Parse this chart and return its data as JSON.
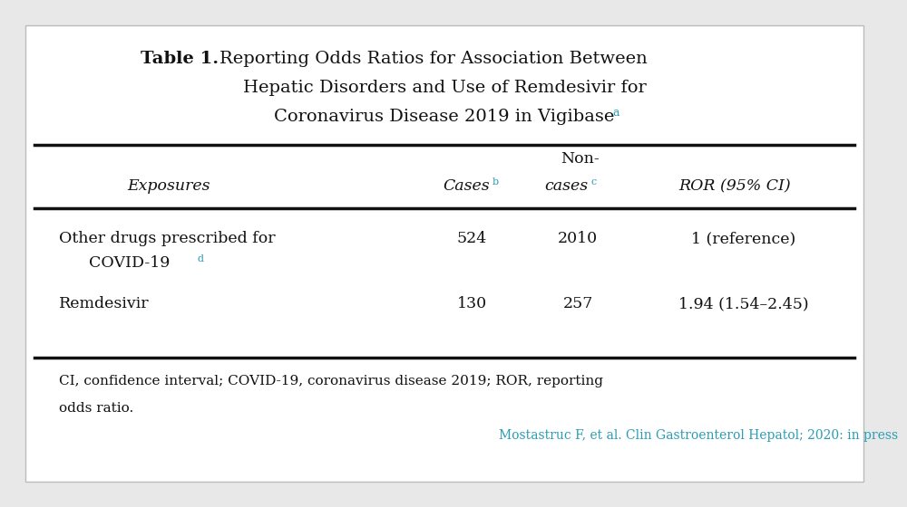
{
  "background_color": "#e8e8e8",
  "table_bg": "#ffffff",
  "title_bold": "Table 1.",
  "title_line1": "Reporting Odds Ratios for Association Between",
  "title_line2": "Hepatic Disorders and Use of Remdesivir for",
  "title_line3": "Coronavirus Disease 2019 in Vigibase",
  "title_super_a": "a",
  "cyan": "#2a9db5",
  "footnote_line1": "CI, confidence interval; COVID-19, coronavirus disease 2019; ROR, reporting",
  "footnote_line2": "odds ratio.",
  "citation": "Mostastruc F, et al. Clin Gastroenterol Hepatol; 2020: in press"
}
